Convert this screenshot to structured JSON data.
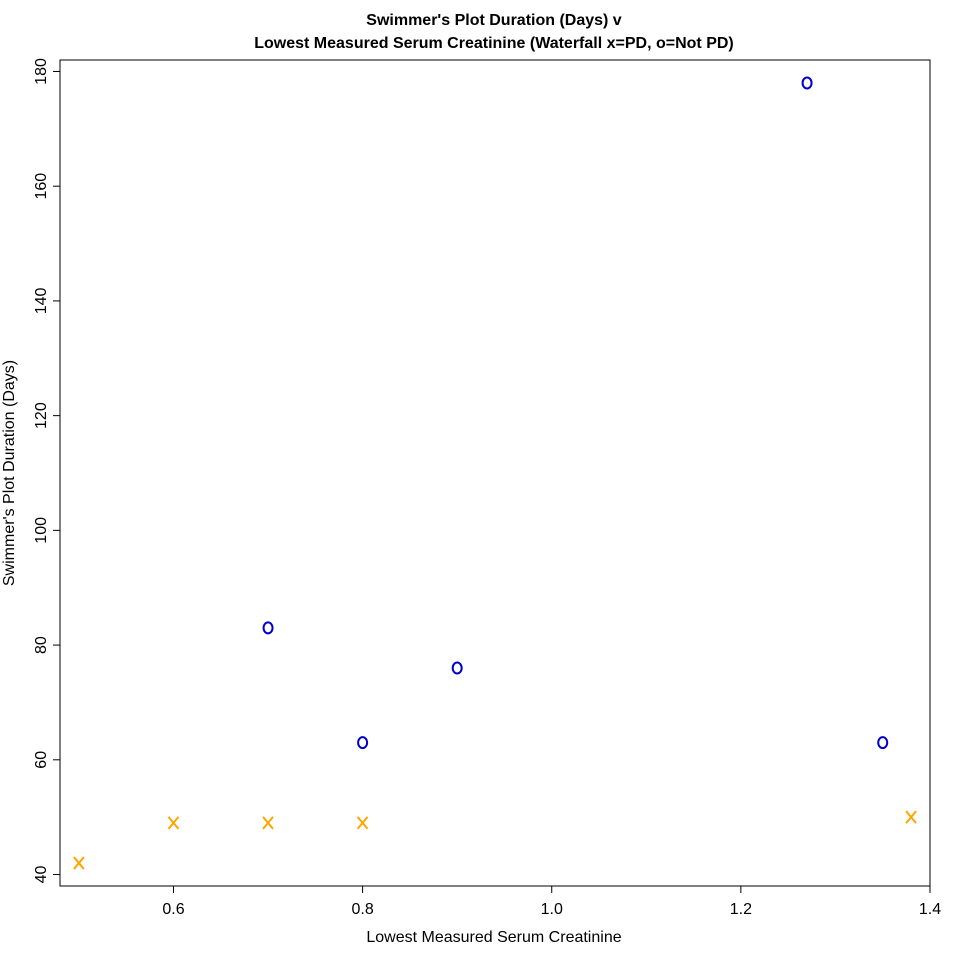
{
  "chart_data": {
    "type": "scatter",
    "title_line1": "Swimmer's Plot Duration (Days) v",
    "title_line2": "Lowest Measured Serum Creatinine (Waterfall x=PD, o=Not PD)",
    "xlabel": "Lowest Measured Serum Creatinine",
    "ylabel": "Swimmer's Plot Duration (Days)",
    "xlim": [
      0.48,
      1.4
    ],
    "ylim": [
      38,
      182
    ],
    "x_ticks": [
      0.6,
      0.8,
      1.0,
      1.2,
      1.4
    ],
    "x_tick_labels": [
      "0.6",
      "0.8",
      "1.0",
      "1.2",
      "1.4"
    ],
    "y_ticks": [
      40,
      60,
      80,
      100,
      120,
      140,
      160,
      180
    ],
    "y_tick_labels": [
      "40",
      "60",
      "80",
      "100",
      "120",
      "140",
      "160",
      "180"
    ],
    "grid": false,
    "series": [
      {
        "marker": "x",
        "color": "#FFA500",
        "points": [
          {
            "x": 0.5,
            "y": 42
          },
          {
            "x": 0.6,
            "y": 49
          },
          {
            "x": 0.7,
            "y": 49
          },
          {
            "x": 0.8,
            "y": 49
          },
          {
            "x": 1.38,
            "y": 50
          }
        ]
      },
      {
        "marker": "o",
        "color": "#0000CD",
        "points": [
          {
            "x": 0.7,
            "y": 83
          },
          {
            "x": 0.8,
            "y": 63
          },
          {
            "x": 0.9,
            "y": 76
          },
          {
            "x": 1.27,
            "y": 178
          },
          {
            "x": 1.35,
            "y": 63
          }
        ]
      }
    ]
  }
}
